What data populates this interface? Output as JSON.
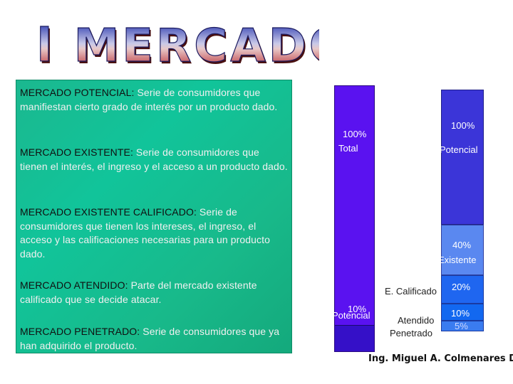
{
  "title": "El MERCADO",
  "definitions": [
    {
      "term": "MERCADO POTENCIAL:",
      "text": " Serie de consumidores que manifiestan cierto grado de interés por un producto dado."
    },
    {
      "term": "MERCADO EXISTENTE:",
      "text": " Serie de consumidores que tienen el interés, el ingreso y el acceso a un producto dado."
    },
    {
      "term": "MERCADO EXISTENTE CALIFICADO:",
      "text": " Serie de consumidores que tienen los intereses, el ingreso, el acceso y las calificaciones necesarias para un producto dado."
    },
    {
      "term": "MERCADO ATENDIDO:",
      "text": " Parte del mercado existente calificado que se decide atacar."
    },
    {
      "term": "MERCADO PENETRADO:",
      "text": " Serie de consumidores que ya han adquirido el producto."
    }
  ],
  "left_bar": {
    "top_label": {
      "pct": "100%",
      "name": "Total"
    },
    "bottom_label": {
      "pct": "10%",
      "name": "Potencial"
    },
    "colors": {
      "main": "#5a12f0",
      "segment": "#3510c8"
    }
  },
  "right_bar": {
    "segments": [
      {
        "pct": "100%",
        "name": "Potencial",
        "color": "#3b35d8",
        "share": 0.6
      },
      {
        "pct": "40%",
        "name": "Existente",
        "color": "#5a88f0",
        "share": 0.2
      },
      {
        "pct": "20%",
        "name": "E. Calificado",
        "color": "#1f66f0",
        "share": 0.1
      },
      {
        "pct": "10%",
        "name": "Atendido",
        "color": "#1268f0",
        "share": 0.05
      },
      {
        "pct": "5%",
        "name": "Penetrado",
        "color": "#3a7cf0",
        "share": 0.05
      }
    ]
  },
  "credit": "Ing. Miguel A. Colmenares D."
}
